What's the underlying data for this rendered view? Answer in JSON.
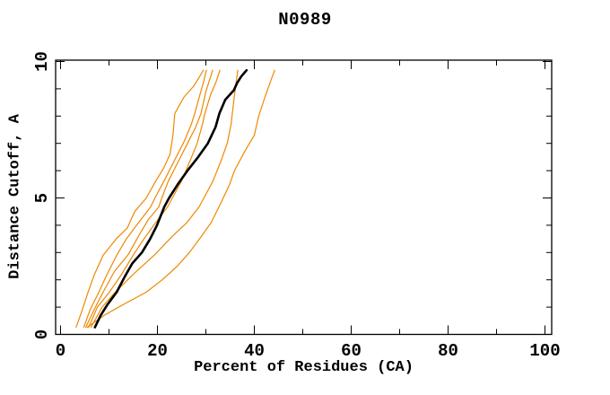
{
  "chart_data": {
    "type": "line",
    "title": "N0989",
    "xlabel": "Percent of Residues (CA)",
    "ylabel": "Distance Cutoff, A",
    "xlim": [
      0,
      101.5
    ],
    "ylim": [
      0,
      10
    ],
    "grid": false,
    "legend": "none",
    "axes": {
      "x": {
        "major_ticks": [
          0,
          20,
          40,
          60,
          80,
          100
        ],
        "major_tick_labels": [
          "0",
          "20",
          "40",
          "60",
          "80",
          "100"
        ],
        "minor_ticks": [
          10,
          30,
          50,
          70,
          90
        ]
      },
      "y": {
        "major_ticks": [
          0,
          5,
          10
        ],
        "major_tick_labels": [
          "0",
          "5",
          "10"
        ],
        "minor_ticks": [
          1,
          2,
          3,
          4,
          6,
          7,
          8,
          9
        ]
      }
    },
    "colors": {
      "model_curves": "#ee8800",
      "reference_curve": "#000000"
    },
    "series": [
      {
        "name": "orange-1",
        "color": "#ee8800",
        "width": 1.2,
        "points_pct_vs_cutoff": [
          [
            3.2,
            0.26
          ],
          [
            4.3,
            0.8
          ],
          [
            5.6,
            1.5
          ],
          [
            7.0,
            2.2
          ],
          [
            8.8,
            2.9
          ],
          [
            11.5,
            3.5
          ],
          [
            13.8,
            3.9
          ],
          [
            15.3,
            4.5
          ],
          [
            17.7,
            5.0
          ],
          [
            19.6,
            5.6
          ],
          [
            21.3,
            6.1
          ],
          [
            22.6,
            6.6
          ],
          [
            23.2,
            7.3
          ],
          [
            23.6,
            8.1
          ],
          [
            25.5,
            8.7
          ],
          [
            27.5,
            9.1
          ],
          [
            29.5,
            9.68
          ]
        ]
      },
      {
        "name": "orange-2",
        "color": "#ee8800",
        "width": 1.2,
        "points_pct_vs_cutoff": [
          [
            4.8,
            0.26
          ],
          [
            6.1,
            0.9
          ],
          [
            7.9,
            1.55
          ],
          [
            9.6,
            2.2
          ],
          [
            11.6,
            2.9
          ],
          [
            13.6,
            3.5
          ],
          [
            15.7,
            4.0
          ],
          [
            18.6,
            4.67
          ],
          [
            19.5,
            5.0
          ],
          [
            21.6,
            5.7
          ],
          [
            23.6,
            6.4
          ],
          [
            25.6,
            7.1
          ],
          [
            27.0,
            7.7
          ],
          [
            27.7,
            8.1
          ],
          [
            28.8,
            8.8
          ],
          [
            29.6,
            9.3
          ],
          [
            30.1,
            9.68
          ]
        ]
      },
      {
        "name": "orange-3",
        "color": "#ee8800",
        "width": 1.2,
        "points_pct_vs_cutoff": [
          [
            5.2,
            0.26
          ],
          [
            6.9,
            0.9
          ],
          [
            8.8,
            1.55
          ],
          [
            11.1,
            2.3
          ],
          [
            14.0,
            2.93
          ],
          [
            16.1,
            3.6
          ],
          [
            18.1,
            4.2
          ],
          [
            20.3,
            4.67
          ],
          [
            20.9,
            5.0
          ],
          [
            22.2,
            5.6
          ],
          [
            24.2,
            6.3
          ],
          [
            26.2,
            7.0
          ],
          [
            27.9,
            7.6
          ],
          [
            29.0,
            8.1
          ],
          [
            30.0,
            8.9
          ],
          [
            31.4,
            9.68
          ]
        ]
      },
      {
        "name": "orange-4",
        "color": "#ee8800",
        "width": 1.2,
        "points_pct_vs_cutoff": [
          [
            5.8,
            0.26
          ],
          [
            7.6,
            1.0
          ],
          [
            10.1,
            1.55
          ],
          [
            12.6,
            2.2
          ],
          [
            15.1,
            2.93
          ],
          [
            17.6,
            3.6
          ],
          [
            20.1,
            4.2
          ],
          [
            22.1,
            4.67
          ],
          [
            23.1,
            5.0
          ],
          [
            24.9,
            5.6
          ],
          [
            26.6,
            6.3
          ],
          [
            28.2,
            7.0
          ],
          [
            29.3,
            7.7
          ],
          [
            29.8,
            8.1
          ],
          [
            31.0,
            8.8
          ],
          [
            32.0,
            9.2
          ],
          [
            32.9,
            9.68
          ]
        ]
      },
      {
        "name": "orange-5",
        "color": "#ee8800",
        "width": 1.2,
        "points_pct_vs_cutoff": [
          [
            6.3,
            0.26
          ],
          [
            8.6,
            1.0
          ],
          [
            11.3,
            1.55
          ],
          [
            15.0,
            2.2
          ],
          [
            19.5,
            2.93
          ],
          [
            23.1,
            3.6
          ],
          [
            26.1,
            4.1
          ],
          [
            28.6,
            4.67
          ],
          [
            29.6,
            5.0
          ],
          [
            31.4,
            5.6
          ],
          [
            33.0,
            6.3
          ],
          [
            34.4,
            7.0
          ],
          [
            35.2,
            7.7
          ],
          [
            35.6,
            8.3
          ],
          [
            36.0,
            8.9
          ],
          [
            36.3,
            9.3
          ],
          [
            36.6,
            9.68
          ]
        ]
      },
      {
        "name": "orange-6",
        "color": "#ee8800",
        "width": 1.2,
        "points_pct_vs_cutoff": [
          [
            5.5,
            0.26
          ],
          [
            9.0,
            0.7
          ],
          [
            13.0,
            1.1
          ],
          [
            17.7,
            1.55
          ],
          [
            21.0,
            2.0
          ],
          [
            24.1,
            2.5
          ],
          [
            26.6,
            3.0
          ],
          [
            29.1,
            3.6
          ],
          [
            31.1,
            4.1
          ],
          [
            32.7,
            4.67
          ],
          [
            33.6,
            5.0
          ],
          [
            34.9,
            5.5
          ],
          [
            35.9,
            6.0
          ],
          [
            38.0,
            6.7
          ],
          [
            40.0,
            7.3
          ],
          [
            40.9,
            8.0
          ],
          [
            42.2,
            8.7
          ],
          [
            43.2,
            9.2
          ],
          [
            44.2,
            9.68
          ]
        ]
      },
      {
        "name": "black-reference",
        "color": "#000000",
        "width": 2.6,
        "points_pct_vs_cutoff": [
          [
            7.1,
            0.26
          ],
          [
            8.3,
            0.7
          ],
          [
            9.7,
            1.1
          ],
          [
            11.6,
            1.55
          ],
          [
            13.2,
            2.1
          ],
          [
            14.8,
            2.6
          ],
          [
            16.8,
            3.0
          ],
          [
            18.5,
            3.5
          ],
          [
            19.9,
            4.0
          ],
          [
            21.4,
            4.67
          ],
          [
            22.4,
            5.0
          ],
          [
            24.2,
            5.5
          ],
          [
            26.2,
            6.0
          ],
          [
            28.4,
            6.5
          ],
          [
            30.4,
            7.0
          ],
          [
            32.0,
            7.6
          ],
          [
            32.8,
            8.1
          ],
          [
            34.0,
            8.6
          ],
          [
            35.8,
            8.95
          ],
          [
            36.4,
            9.2
          ],
          [
            37.3,
            9.45
          ],
          [
            38.4,
            9.68
          ]
        ]
      }
    ]
  }
}
